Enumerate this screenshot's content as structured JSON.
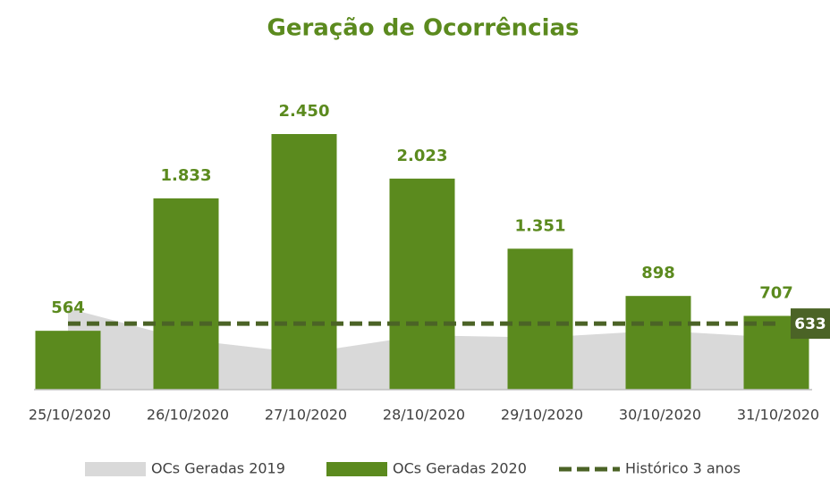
{
  "chart_data": {
    "type": "bar",
    "title": "Geração de Ocorrências",
    "categories": [
      "25/10/2020",
      "26/10/2020",
      "27/10/2020",
      "28/10/2020",
      "29/10/2020",
      "30/10/2020",
      "31/10/2020"
    ],
    "series": [
      {
        "name": "OCs Geradas 2019",
        "type": "area",
        "color": "#d9d9d9",
        "values": [
          780,
          480,
          350,
          520,
          500,
          565,
          500
        ]
      },
      {
        "name": "OCs Geradas 2020",
        "type": "bar",
        "color": "#5b8a1e",
        "values": [
          564,
          1833,
          2450,
          2023,
          1351,
          898,
          707
        ],
        "value_labels": [
          "564",
          "1.833",
          "2.450",
          "2.023",
          "1.351",
          "898",
          "707"
        ]
      },
      {
        "name": "Histórico 3 anos",
        "type": "line",
        "color": "#4b6326",
        "dashed": true,
        "values": [
          633,
          633,
          633,
          633,
          633,
          633,
          633
        ]
      }
    ],
    "legend": "bottom",
    "grid": false
  }
}
